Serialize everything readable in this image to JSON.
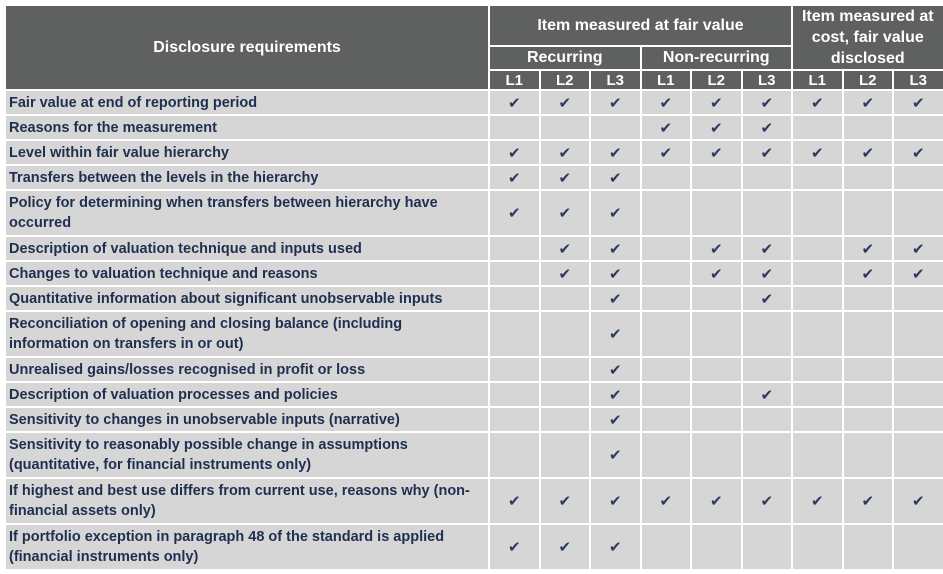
{
  "header": {
    "disclosure_requirements": "Disclosure requirements",
    "fair_value_group": "Item measured at fair value",
    "cost_group": "Item measured at cost, fair value disclosed",
    "recurring": "Recurring",
    "non_recurring": "Non-recurring",
    "levels": [
      "L1",
      "L2",
      "L3",
      "L1",
      "L2",
      "L3",
      "L1",
      "L2",
      "L3"
    ]
  },
  "check_icon": "check-mark-icon",
  "check_glyph": "✔",
  "rows": [
    {
      "label": "Fair  value at end of reporting period",
      "checks": [
        1,
        1,
        1,
        1,
        1,
        1,
        1,
        1,
        1
      ]
    },
    {
      "label": "Reasons for the measurement",
      "checks": [
        0,
        0,
        0,
        1,
        1,
        1,
        0,
        0,
        0
      ]
    },
    {
      "label": "Level within fair value hierarchy",
      "checks": [
        1,
        1,
        1,
        1,
        1,
        1,
        1,
        1,
        1
      ]
    },
    {
      "label": "Transfers between the levels in the hierarchy",
      "checks": [
        1,
        1,
        1,
        0,
        0,
        0,
        0,
        0,
        0
      ]
    },
    {
      "label": "Policy for determining when transfers between hierarchy have occurred",
      "checks": [
        1,
        1,
        1,
        0,
        0,
        0,
        0,
        0,
        0
      ]
    },
    {
      "label": "Description of valuation technique and inputs used",
      "checks": [
        0,
        1,
        1,
        0,
        1,
        1,
        0,
        1,
        1
      ]
    },
    {
      "label": "Changes to valuation technique and reasons",
      "checks": [
        0,
        1,
        1,
        0,
        1,
        1,
        0,
        1,
        1
      ]
    },
    {
      "label": "Quantitative information about significant unobservable inputs",
      "checks": [
        0,
        0,
        1,
        0,
        0,
        1,
        0,
        0,
        0
      ]
    },
    {
      "label": "Reconciliation of opening and closing balance (including information on transfers in or out)",
      "checks": [
        0,
        0,
        1,
        0,
        0,
        0,
        0,
        0,
        0
      ]
    },
    {
      "label": "Unrealised gains/losses recognised in profit or loss",
      "checks": [
        0,
        0,
        1,
        0,
        0,
        0,
        0,
        0,
        0
      ]
    },
    {
      "label": "Description of valuation processes and policies",
      "checks": [
        0,
        0,
        1,
        0,
        0,
        1,
        0,
        0,
        0
      ]
    },
    {
      "label": "Sensitivity to changes in unobservable inputs (narrative)",
      "checks": [
        0,
        0,
        1,
        0,
        0,
        0,
        0,
        0,
        0
      ]
    },
    {
      "label": "Sensitivity to reasonably possible change in assumptions (quantitative, for financial instruments only)",
      "checks": [
        0,
        0,
        1,
        0,
        0,
        0,
        0,
        0,
        0
      ]
    },
    {
      "label": "If highest and best use differs from current use, reasons why (non-financial assets only)",
      "checks": [
        1,
        1,
        1,
        1,
        1,
        1,
        1,
        1,
        1
      ]
    },
    {
      "label": "If portfolio exception in paragraph 48 of the standard is applied (financial instruments only)",
      "checks": [
        1,
        1,
        1,
        0,
        0,
        0,
        0,
        0,
        0
      ]
    }
  ]
}
